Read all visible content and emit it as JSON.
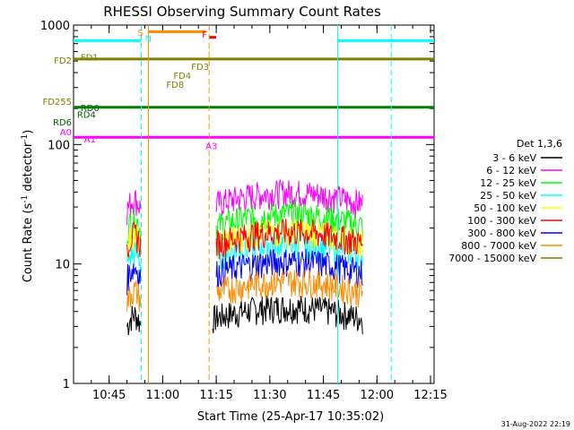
{
  "chart_data": {
    "type": "line",
    "title": "RHESSI Observing Summary Count Rates",
    "xlabel": "Start Time (25-Apr-17 10:35:02)",
    "ylabel_main": "Count Rate (s",
    "ylabel_sup1": "-1",
    "ylabel_mid": " detector",
    "ylabel_sup2": "-1",
    "ylabel_end": ")",
    "y_scale": "log",
    "xlim": [
      "10:35:02",
      "12:16"
    ],
    "ylim": [
      1,
      1000
    ],
    "x_ticks": [
      "10:45",
      "11:00",
      "11:15",
      "11:30",
      "11:45",
      "12:00",
      "12:15"
    ],
    "y_ticks": [
      "1",
      "10",
      "100",
      "1000"
    ],
    "legend_title": "Det 1,3,6",
    "legend_position": "right",
    "footer_date": "31-Aug-2022 22:19",
    "series": [
      {
        "name": "3 - 6 keV",
        "color": "#000000",
        "segments": [
          {
            "t": [
              "10:50",
              "10:54"
            ],
            "level": 3.0
          },
          {
            "t": [
              "11:14",
              "11:56"
            ],
            "level": 3.5
          }
        ]
      },
      {
        "name": "6 - 12 keV",
        "color": "#ff00ff",
        "segments": [
          {
            "t": [
              "10:50",
              "10:54"
            ],
            "level": 28
          },
          {
            "t": [
              "11:15",
              "11:56"
            ],
            "level": 32
          }
        ]
      },
      {
        "name": "12 - 25 keV",
        "color": "#00ff00",
        "segments": [
          {
            "t": [
              "10:50",
              "10:54"
            ],
            "level": 19
          },
          {
            "t": [
              "11:15",
              "11:56"
            ],
            "level": 21
          }
        ]
      },
      {
        "name": "25 - 50 keV",
        "color": "#00ffff",
        "segments": [
          {
            "t": [
              "10:50",
              "10:54"
            ],
            "level": 10
          },
          {
            "t": [
              "11:15",
              "11:56"
            ],
            "level": 12
          }
        ]
      },
      {
        "name": "50 - 100 keV",
        "color": "#ffff00",
        "segments": [
          {
            "t": [
              "10:50",
              "10:54"
            ],
            "level": 14
          },
          {
            "t": [
              "11:15",
              "11:56"
            ],
            "level": 15
          }
        ]
      },
      {
        "name": "100 - 300 keV",
        "color": "#ff0000",
        "segments": [
          {
            "t": [
              "10:50",
              "10:54"
            ],
            "level": 14
          },
          {
            "t": [
              "11:15",
              "11:56"
            ],
            "level": 15
          }
        ]
      },
      {
        "name": "300 - 800 keV",
        "color": "#0000ff",
        "segments": [
          {
            "t": [
              "10:50",
              "10:54"
            ],
            "level": 7.5
          },
          {
            "t": [
              "11:15",
              "11:56"
            ],
            "level": 8.5
          }
        ]
      },
      {
        "name": "800 - 7000 keV",
        "color": "#ff8c00",
        "segments": [
          {
            "t": [
              "10:50",
              "10:54"
            ],
            "level": 4.8
          },
          {
            "t": [
              "11:15",
              "11:56"
            ],
            "level": 5.8
          }
        ]
      },
      {
        "name": "7000 - 15000 keV",
        "color": "#808000",
        "segments": []
      }
    ],
    "flags": {
      "annotations": [
        {
          "text": "FD2",
          "color": "#808000",
          "t": "10:35:02",
          "y": 510,
          "side": "left"
        },
        {
          "text": "FD1",
          "color": "#808000",
          "t": "10:37",
          "y": 540
        },
        {
          "text": "FD255",
          "color": "#808000",
          "t": "10:35:02",
          "y": 230,
          "side": "left"
        },
        {
          "text": "FD4",
          "color": "#808000",
          "t": "11:03",
          "y": 380
        },
        {
          "text": "FD8",
          "color": "#808000",
          "t": "11:01",
          "y": 320
        },
        {
          "text": "FD3",
          "color": "#808000",
          "t": "11:08",
          "y": 450
        },
        {
          "text": "RD0",
          "color": "#006400",
          "t": "10:37",
          "y": 205
        },
        {
          "text": "RD4",
          "color": "#006400",
          "t": "10:36",
          "y": 180
        },
        {
          "text": "RD6",
          "color": "#006400",
          "t": "10:35:02",
          "y": 155,
          "side": "left"
        },
        {
          "text": "A0",
          "color": "#ff00ff",
          "t": "10:35:02",
          "y": 128,
          "side": "left"
        },
        {
          "text": "A1",
          "color": "#ff00ff",
          "t": "10:38",
          "y": 112
        },
        {
          "text": "A3",
          "color": "#ff00ff",
          "t": "11:12",
          "y": 98
        },
        {
          "text": "F",
          "color": "#ff0000",
          "t": "11:11",
          "y": 840
        },
        {
          "text": "S",
          "color": "#ff8c00",
          "t": "10:53",
          "y": 870
        },
        {
          "text": "N",
          "color": "#00ffff",
          "t": "10:55",
          "y": 780
        }
      ],
      "hlines": [
        {
          "name": "FD",
          "color": "#808000",
          "y": 520,
          "t": [
            "10:35:02",
            "12:16"
          ],
          "width": 3
        },
        {
          "name": "RD",
          "color": "#008000",
          "y": 205,
          "t": [
            "10:35:02",
            "12:16"
          ],
          "width": 3
        },
        {
          "name": "A",
          "color": "#ff00ff",
          "y": 115,
          "t": [
            "10:35:02",
            "12:16"
          ],
          "width": 3
        },
        {
          "name": "N1",
          "color": "#00ffff",
          "y": 740,
          "t": [
            "10:35:02",
            "10:54"
          ],
          "width": 3
        },
        {
          "name": "N2",
          "color": "#00ffff",
          "y": 740,
          "t": [
            "11:49",
            "12:16"
          ],
          "width": 3
        },
        {
          "name": "S",
          "color": "#ff8c00",
          "y": 880,
          "t": [
            "10:56",
            "11:12"
          ],
          "width": 3
        },
        {
          "name": "F",
          "color": "#ff0000",
          "y": 790,
          "t": [
            "11:13",
            "11:15"
          ],
          "width": 3
        }
      ],
      "vlines": [
        {
          "color": "#00ffff",
          "t": "10:54",
          "dashed": true
        },
        {
          "color": "#ff8c00",
          "t": "10:56",
          "dashed": false
        },
        {
          "color": "#ff8c00",
          "t": "11:13",
          "dashed": true
        },
        {
          "color": "#00ffff",
          "t": "11:49",
          "dashed": false
        },
        {
          "color": "#00ffff",
          "t": "12:04",
          "dashed": true
        }
      ]
    }
  }
}
